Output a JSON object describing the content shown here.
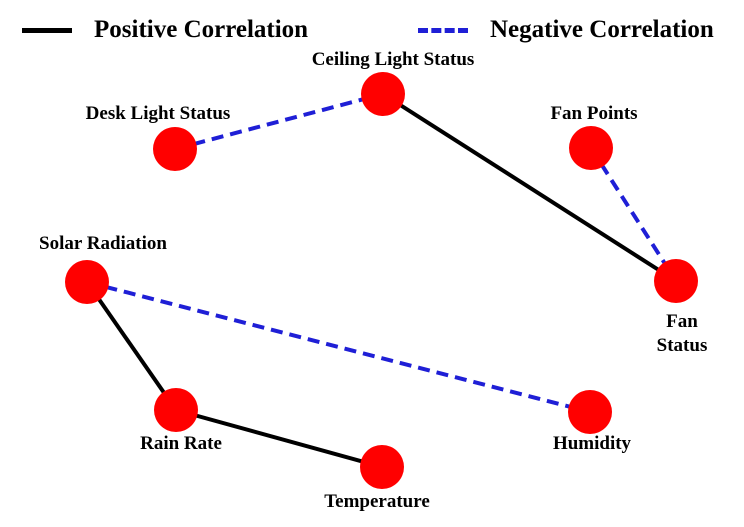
{
  "legend": {
    "positive_label": "Positive Correlation",
    "negative_label": "Negative Correlation"
  },
  "colors": {
    "positive_edge": "#000000",
    "negative_edge": "#1f1fd6",
    "node_fill": "#ff0000",
    "background": "#ffffff",
    "text": "#000000"
  },
  "nodes": [
    {
      "id": "ceiling_light",
      "label": "Ceiling Light Status"
    },
    {
      "id": "desk_light",
      "label": "Desk Light Status"
    },
    {
      "id": "fan_points",
      "label": "Fan Points"
    },
    {
      "id": "fan_status",
      "label_line1": "Fan",
      "label_line2": "Status"
    },
    {
      "id": "solar_radiation",
      "label": "Solar Radiation"
    },
    {
      "id": "rain_rate",
      "label": "Rain Rate"
    },
    {
      "id": "humidity",
      "label": "Humidity"
    },
    {
      "id": "temperature",
      "label": "Temperature"
    }
  ],
  "edges": [
    {
      "from": "desk_light",
      "to": "ceiling_light",
      "type": "negative"
    },
    {
      "from": "ceiling_light",
      "to": "fan_status",
      "type": "positive"
    },
    {
      "from": "fan_points",
      "to": "fan_status",
      "type": "negative"
    },
    {
      "from": "solar_radiation",
      "to": "humidity",
      "type": "negative"
    },
    {
      "from": "solar_radiation",
      "to": "rain_rate",
      "type": "positive"
    },
    {
      "from": "rain_rate",
      "to": "temperature",
      "type": "positive"
    }
  ]
}
